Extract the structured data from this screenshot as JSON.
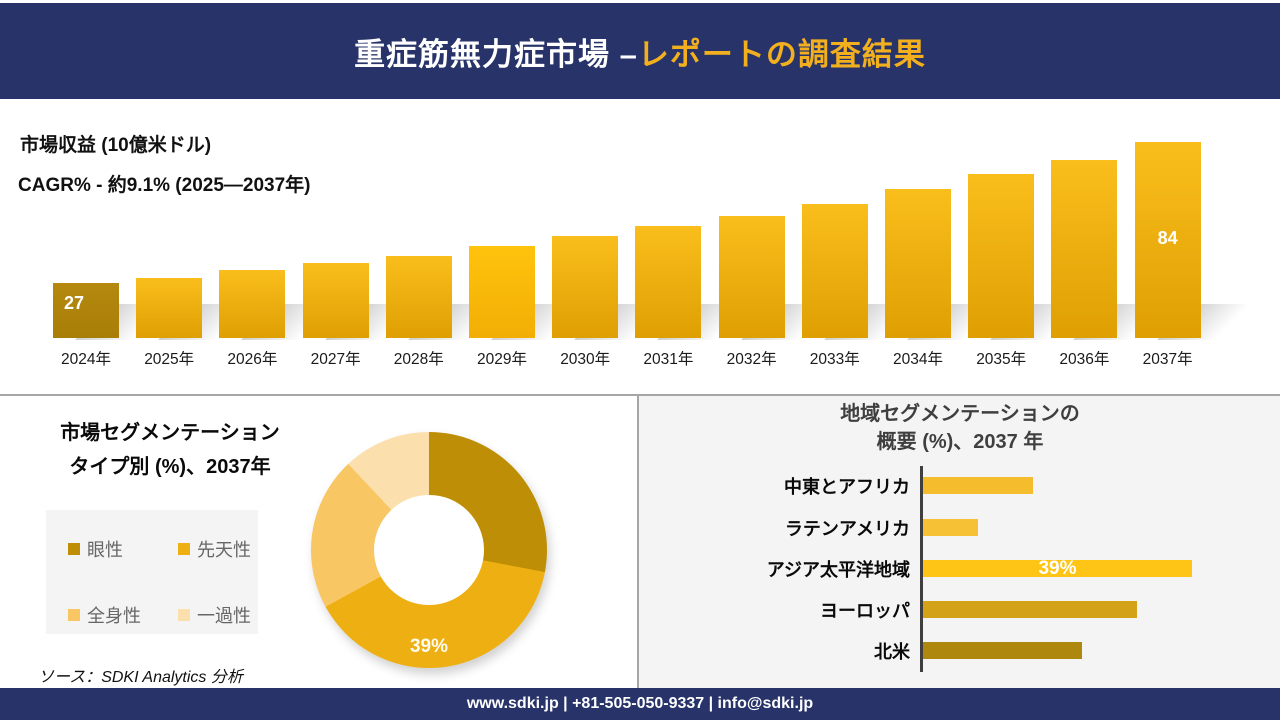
{
  "header": {
    "title_white": "重症筋無力症市場 –",
    "title_accent": "レポートの調査結果"
  },
  "revenue_section": {
    "metric_label": "市場収益 (10億米ドル)",
    "cagr_label": "CAGR% - 約9.1% (2025―2037年)"
  },
  "segmentation_section": {
    "title_line1": "市場セグメンテーション",
    "title_line2": "タイプ別 (%)、2037年",
    "source": "ソース：SDKI Analytics 分析"
  },
  "regional_section": {
    "title_line1": "地域セグメンテーションの",
    "title_line2": "概要 (%)、2037 年"
  },
  "footer": {
    "text": "www.sdki.jp | +81-505-050-9337 | info@sdki.jp"
  },
  "colors": {
    "header_bg": "#273369",
    "header_accent": "#F2B01E",
    "footer_bg": "#273369",
    "divider": "#A6A6A6",
    "panel_bg": "#F4F4F4",
    "bar_gradient_top": "#F9BE1C",
    "bar_gradient_bottom": "#DF9F03",
    "bar_2024": "#B5890E",
    "bar_2029": "#FFC30C"
  },
  "chart_data": [
    {
      "type": "bar",
      "title": "市場収益 (10億米ドル)",
      "subtitle": "CAGR% - 約9.1% (2025―2037年)",
      "categories": [
        "2024年",
        "2025年",
        "2026年",
        "2027年",
        "2028年",
        "2029年",
        "2030年",
        "2031年",
        "2032年",
        "2033年",
        "2034年",
        "2035年",
        "2036年",
        "2037年"
      ],
      "values": [
        27,
        29,
        32,
        35,
        38,
        42,
        46,
        50,
        54,
        59,
        65,
        71,
        77,
        84
      ],
      "data_labels": [
        "27",
        "",
        "",
        "",
        "",
        "",
        "",
        "",
        "",
        "",
        "",
        "",
        "",
        "84"
      ],
      "xlabel": "",
      "ylabel": "市場収益 (10億米ドル)",
      "ylim": [
        0,
        90
      ],
      "grid": false,
      "note": "only 2024 (27) and 2037 (84) are labeled; intermediate values estimated from 9.1% CAGR"
    },
    {
      "type": "pie",
      "donut": true,
      "title": "市場セグメンテーション タイプ別 (%)、2037年",
      "segments": [
        {
          "label": "眼性",
          "value": 28,
          "color": "#BE8F06",
          "data_label": ""
        },
        {
          "label": "先天性",
          "value": 39,
          "color": "#EEAF12",
          "data_label": "39%"
        },
        {
          "label": "全身性",
          "value": 21,
          "color": "#F8C662",
          "data_label": ""
        },
        {
          "label": "一過性",
          "value": 12,
          "color": "#FBDFAD",
          "data_label": ""
        }
      ],
      "legend_position": "left",
      "note": "only 39% slice labeled; other slice values estimated from arc angles"
    },
    {
      "type": "bar",
      "orientation": "horizontal",
      "title": "地域セグメンテーションの概要 (%)、2037 年",
      "categories": [
        "中東とアフリカ",
        "ラテンアメリカ",
        "アジア太平洋地域",
        "ヨーロッパ",
        "北米"
      ],
      "values": [
        16,
        8,
        39,
        31,
        23
      ],
      "bar_colors": [
        "#F5BD2E",
        "#F7C136",
        "#FFC516",
        "#D3A216",
        "#AE870F"
      ],
      "data_labels": [
        "",
        "",
        "39%",
        "",
        ""
      ],
      "xlim": [
        0,
        45
      ],
      "grid": false,
      "note": "only アジア太平洋地域 (39%) is labeled; other values estimated from bar lengths"
    }
  ]
}
